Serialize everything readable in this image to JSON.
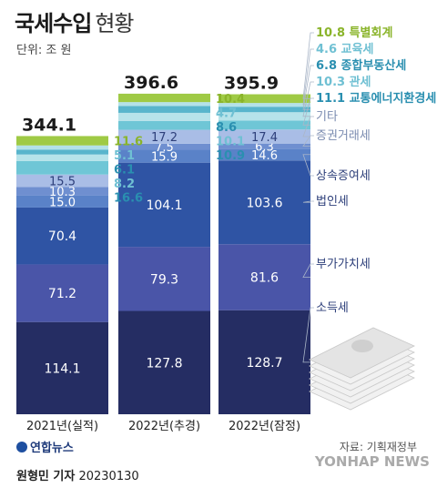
{
  "title_main": "국세수입",
  "title_sub": "현황",
  "unit": "단위: 조 원",
  "credit": "원형민 기자",
  "credit_date": "20230130",
  "source": "자료: 기획재정부",
  "agency": "연합뉴스",
  "watermark": "YONHAP NEWS",
  "colors": {
    "소득세": "#252d63",
    "부가가치세": "#4a55a8",
    "법인세": "#2f54a4",
    "상속증여세": "#5a82c8",
    "증권거래세": "#6f8fd0",
    "기타": "#a9bde6",
    "교통에너지환경세": "#6fc6d6",
    "관세": "#b6e3ea",
    "종합부동산세": "#58b5cc",
    "교육세": "#b3e1e8",
    "특별회계": "#9fca45"
  },
  "chart_data": {
    "type": "bar",
    "stacked": true,
    "categories": [
      "2021년(실적)",
      "2022년(추경)",
      "2022년(잠정)"
    ],
    "totals": [
      "344.1",
      "396.6",
      "395.9"
    ],
    "series": [
      {
        "name": "소득세",
        "values": [
          114.1,
          127.8,
          128.7
        ]
      },
      {
        "name": "부가가치세",
        "values": [
          71.2,
          79.3,
          81.6
        ]
      },
      {
        "name": "법인세",
        "values": [
          70.4,
          104.1,
          103.6
        ]
      },
      {
        "name": "상속증여세",
        "values": [
          15.0,
          15.9,
          14.6
        ]
      },
      {
        "name": "증권거래세",
        "values": [
          10.3,
          7.5,
          6.3
        ]
      },
      {
        "name": "기타",
        "values": [
          15.5,
          17.2,
          17.4
        ]
      },
      {
        "name": "교통에너지환경세",
        "values": [
          16.6,
          10.9,
          11.1
        ]
      },
      {
        "name": "관세",
        "values": [
          8.2,
          10.1,
          10.3
        ]
      },
      {
        "name": "종합부동산세",
        "values": [
          6.1,
          8.6,
          6.8
        ]
      },
      {
        "name": "교육세",
        "values": [
          5.1,
          4.7,
          4.6
        ]
      },
      {
        "name": "특별회계",
        "values": [
          11.6,
          10.4,
          10.8
        ]
      }
    ],
    "legend": [
      {
        "series": "특별회계",
        "text": "10.8 특별회계"
      },
      {
        "series": "교육세",
        "text": "4.6 교육세"
      },
      {
        "series": "종합부동산세",
        "text": "6.8 종합부동산세"
      },
      {
        "series": "관세",
        "text": "10.3 관세"
      },
      {
        "series": "교통에너지환경세",
        "text": "11.1 교통에너지환경세"
      },
      {
        "series": "기타",
        "text": "기타"
      },
      {
        "series": "증권거래세",
        "text": "증권거래세"
      },
      {
        "series": "상속증여세",
        "text": "상속증여세"
      },
      {
        "series": "법인세",
        "text": "법인세"
      },
      {
        "series": "부가가치세",
        "text": "부가가치세"
      },
      {
        "series": "소득세",
        "text": "소득세"
      }
    ]
  }
}
